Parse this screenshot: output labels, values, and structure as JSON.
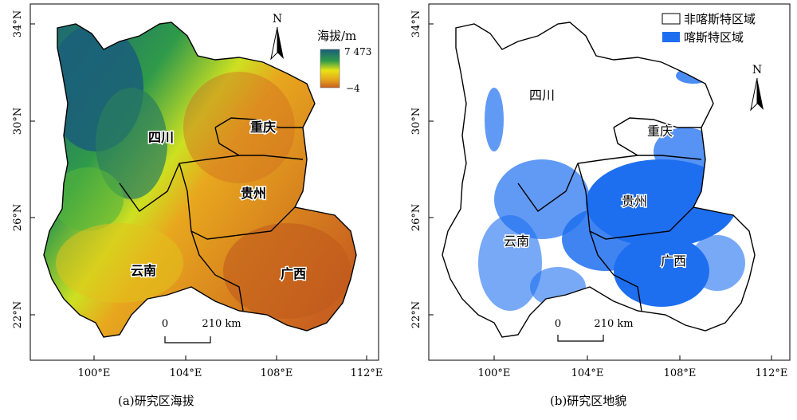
{
  "panel_a": {
    "caption": "(a)研究区海拔",
    "provinces": [
      "四川",
      "重庆",
      "贵州",
      "云南",
      "广西"
    ],
    "legend": {
      "title": "海拔/m",
      "max": "7 473",
      "min": "−4"
    },
    "x_ticks": [
      "100°E",
      "104°E",
      "108°E",
      "112°E"
    ],
    "y_ticks": [
      "34°N",
      "30°N",
      "26°N",
      "22°N"
    ],
    "scale": {
      "start": "0",
      "end": "210 km"
    },
    "north": "N"
  },
  "panel_b": {
    "caption": "(b)研究区地貌",
    "provinces": [
      "四川",
      "重庆",
      "贵州",
      "云南",
      "广西"
    ],
    "legend": {
      "non_karst": "非喀斯特区域",
      "karst": "喀斯特区域"
    },
    "x_ticks": [
      "100°E",
      "104°E",
      "108°E",
      "112°E"
    ],
    "y_ticks": [
      "34°N",
      "30°N",
      "26°N",
      "22°N"
    ],
    "scale": {
      "start": "0",
      "end": "210 km"
    },
    "north": "N"
  },
  "colors": {
    "elev_high": "#1a5e7a",
    "elev_mid_high": "#2f9a4a",
    "elev_mid": "#e8e414",
    "elev_low": "#e4a21e",
    "elev_lowest": "#c8601f",
    "karst": "#1e6ff0"
  }
}
